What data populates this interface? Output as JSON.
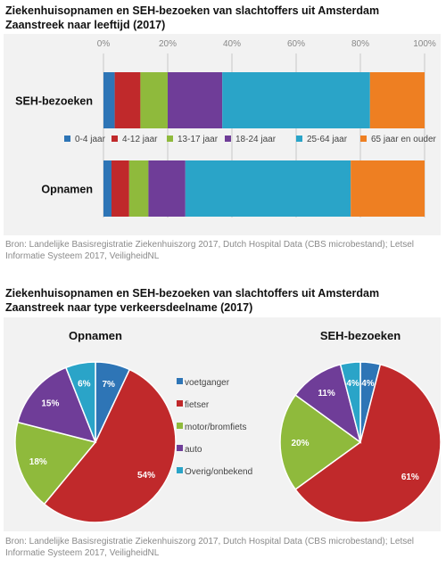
{
  "chart1": {
    "title_line1": "Ziekenhuisopnamen en SEH-bezoeken van slachtoffers uit Amsterdam",
    "title_line2": "Zaanstreek naar leeftijd (2017)",
    "source_line1": "Bron: Landelijke Basisregistratie Ziekenhuiszorg 2017, Dutch Hospital Data (CBS microbestand); Letsel",
    "source_line2": "Informatie Systeem 2017, VeiligheidNL"
  },
  "chart2": {
    "title_line1": "Ziekenhuisopnamen en SEH-bezoeken van slachtoffers uit Amsterdam",
    "title_line2": "Zaanstreek naar type verkeersdeelname (2017)",
    "source_line1": "Bron: Landelijke Basisregistratie Ziekenhuiszorg 2017, Dutch Hospital Data (CBS microbestand); Letsel",
    "source_line2": "Informatie Systeem 2017, VeiligheidNL"
  },
  "chart_data": [
    {
      "type": "bar",
      "orientation": "horizontal-stacked",
      "title": "Ziekenhuisopnamen en SEH-bezoeken van slachtoffers uit Amsterdam Zaanstreek naar leeftijd (2017)",
      "categories": [
        "SEH-bezoeken",
        "Opnamen"
      ],
      "xlim": [
        0,
        100
      ],
      "ticks": [
        "0%",
        "20%",
        "40%",
        "60%",
        "80%",
        "100%"
      ],
      "grid": true,
      "legend_position": "between-bars",
      "series": [
        {
          "name": "0-4 jaar",
          "color": "#2e75b6",
          "values": [
            3.5,
            2.5
          ]
        },
        {
          "name": "4-12 jaar",
          "color": "#c0292b",
          "values": [
            8,
            5.5
          ]
        },
        {
          "name": "13-17 jaar",
          "color": "#8fba3c",
          "values": [
            8.5,
            6
          ]
        },
        {
          "name": "18-24 jaar",
          "color": "#6f3d98",
          "values": [
            17,
            11.5
          ]
        },
        {
          "name": "25-64 jaar",
          "color": "#2aa4c8",
          "values": [
            46,
            51.5
          ]
        },
        {
          "name": "65 jaar en ouder",
          "color": "#ee7f22",
          "values": [
            17,
            23
          ]
        }
      ]
    },
    {
      "type": "pie",
      "title": "Opnamen",
      "legend_position": "right",
      "labels": [
        "voetganger",
        "fietser",
        "motor/bromfiets",
        "auto",
        "Overig/onbekend"
      ],
      "colors": [
        "#2e75b6",
        "#c0292b",
        "#8fba3c",
        "#6f3d98",
        "#2aa4c8"
      ],
      "values": [
        7,
        54,
        18,
        15,
        6
      ],
      "value_labels": [
        "7%",
        "54%",
        "18%",
        "15%",
        "6%"
      ]
    },
    {
      "type": "pie",
      "title": "SEH-bezoeken",
      "labels": [
        "voetganger",
        "fietser",
        "motor/bromfiets",
        "auto",
        "Overig/onbekend"
      ],
      "colors": [
        "#2e75b6",
        "#c0292b",
        "#8fba3c",
        "#6f3d98",
        "#2aa4c8"
      ],
      "values": [
        4,
        61,
        20,
        11,
        4
      ],
      "value_labels": [
        "4%",
        "61%",
        "20%",
        "11%",
        "4%"
      ]
    }
  ]
}
